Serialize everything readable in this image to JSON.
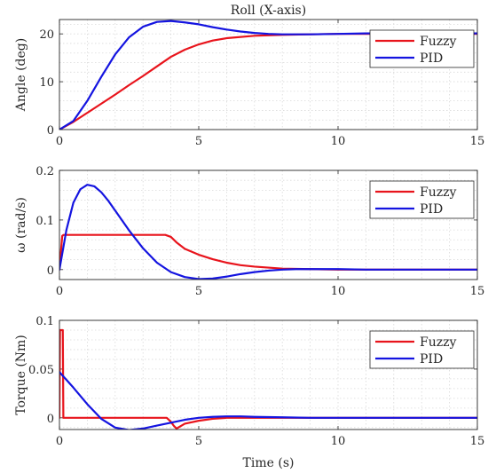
{
  "chart_data": [
    {
      "type": "line",
      "title": "Roll (X-axis)",
      "xlabel": "",
      "ylabel": "Angle (deg)",
      "xlim": [
        0,
        15
      ],
      "ylim": [
        0,
        23
      ],
      "xticks": [
        0,
        5,
        10,
        15
      ],
      "yticks": [
        0,
        10,
        20
      ],
      "grid": true,
      "legend_position": "top-right",
      "series": [
        {
          "name": "Fuzzy",
          "color": "#e8141c",
          "x": [
            0,
            0.5,
            1,
            1.5,
            2,
            2.5,
            3,
            3.5,
            4,
            4.5,
            5,
            5.5,
            6,
            7,
            8,
            9,
            10,
            11,
            12,
            13,
            14,
            15
          ],
          "y": [
            0,
            1.6,
            3.5,
            5.4,
            7.3,
            9.3,
            11.2,
            13.2,
            15.2,
            16.7,
            17.8,
            18.6,
            19.1,
            19.6,
            19.8,
            19.9,
            20,
            20,
            20,
            20,
            20,
            20
          ]
        },
        {
          "name": "PID",
          "color": "#1414e0",
          "x": [
            0,
            0.5,
            1,
            1.5,
            2,
            2.5,
            3,
            3.5,
            4,
            4.5,
            5,
            5.5,
            6,
            6.5,
            7,
            7.5,
            8,
            8.5,
            9,
            10,
            11,
            12,
            13,
            14,
            15
          ],
          "y": [
            0,
            1.8,
            6.0,
            11.0,
            15.7,
            19.3,
            21.5,
            22.5,
            22.7,
            22.4,
            22.0,
            21.4,
            20.9,
            20.5,
            20.2,
            20.0,
            19.9,
            19.9,
            19.9,
            20.0,
            20.1,
            20.1,
            20.1,
            20.1,
            20.1
          ]
        }
      ]
    },
    {
      "type": "line",
      "title": "",
      "xlabel": "",
      "ylabel": "ω (rad/s)",
      "xlim": [
        0,
        15
      ],
      "ylim": [
        -0.02,
        0.2
      ],
      "xticks": [
        0,
        5,
        10,
        15
      ],
      "yticks": [
        0,
        0.1,
        0.2
      ],
      "grid": true,
      "legend_position": "top-right",
      "series": [
        {
          "name": "Fuzzy",
          "color": "#e8141c",
          "x": [
            0,
            0.1,
            0.15,
            0.2,
            1,
            2,
            3,
            3.8,
            4.0,
            4.2,
            4.5,
            5,
            5.5,
            6,
            6.5,
            7,
            7.5,
            8,
            9,
            10,
            11,
            12,
            13,
            14,
            15
          ],
          "y": [
            0,
            0.068,
            0.07,
            0.07,
            0.07,
            0.07,
            0.07,
            0.07,
            0.066,
            0.055,
            0.042,
            0.03,
            0.021,
            0.014,
            0.009,
            0.006,
            0.004,
            0.002,
            0.001,
            0,
            0,
            0,
            0,
            0,
            0
          ]
        },
        {
          "name": "PID",
          "color": "#1414e0",
          "x": [
            0,
            0.25,
            0.5,
            0.75,
            1,
            1.25,
            1.5,
            1.75,
            2,
            2.5,
            3,
            3.5,
            4,
            4.5,
            5,
            5.5,
            6,
            6.5,
            7,
            7.5,
            8,
            8.5,
            9,
            10,
            11,
            12,
            13,
            14,
            15
          ],
          "y": [
            0,
            0.08,
            0.135,
            0.162,
            0.171,
            0.168,
            0.156,
            0.139,
            0.119,
            0.079,
            0.043,
            0.014,
            -0.005,
            -0.015,
            -0.019,
            -0.018,
            -0.014,
            -0.009,
            -0.005,
            -0.002,
            0,
            0.001,
            0.001,
            0.001,
            0,
            0,
            0,
            0,
            0
          ]
        }
      ]
    },
    {
      "type": "line",
      "title": "",
      "xlabel": "Time (s)",
      "ylabel": "Torque (Nm)",
      "xlim": [
        0,
        15
      ],
      "ylim": [
        -0.012,
        0.1
      ],
      "xticks": [
        0,
        5,
        10,
        15
      ],
      "yticks": [
        0,
        0.05,
        0.1
      ],
      "grid": true,
      "legend_position": "top-right",
      "series": [
        {
          "name": "Fuzzy",
          "color": "#e8141c",
          "x": [
            0,
            0.02,
            0.12,
            0.14,
            1,
            2,
            3,
            3.85,
            4.0,
            4.1,
            4.2,
            4.5,
            5,
            5.5,
            6,
            7,
            8,
            9,
            10,
            11,
            12,
            13,
            14,
            15
          ],
          "y": [
            0,
            0.09,
            0.09,
            0,
            0,
            0,
            0,
            0,
            -0.004,
            -0.008,
            -0.011,
            -0.006,
            -0.003,
            -0.001,
            0,
            0,
            0,
            0,
            0,
            0,
            0,
            0,
            0,
            0
          ]
        },
        {
          "name": "PID",
          "color": "#1414e0",
          "x": [
            0,
            0.5,
            1,
            1.5,
            2,
            2.5,
            3,
            3.5,
            4,
            4.5,
            5,
            5.5,
            6,
            6.5,
            7,
            8,
            9,
            10,
            11,
            12,
            13,
            14,
            15
          ],
          "y": [
            0.047,
            0.031,
            0.014,
            -0.001,
            -0.01,
            -0.0125,
            -0.011,
            -0.008,
            -0.005,
            -0.002,
            0,
            0.001,
            0.0015,
            0.0015,
            0.001,
            0.0005,
            0,
            0,
            0,
            0,
            0,
            0,
            0
          ]
        }
      ]
    }
  ]
}
